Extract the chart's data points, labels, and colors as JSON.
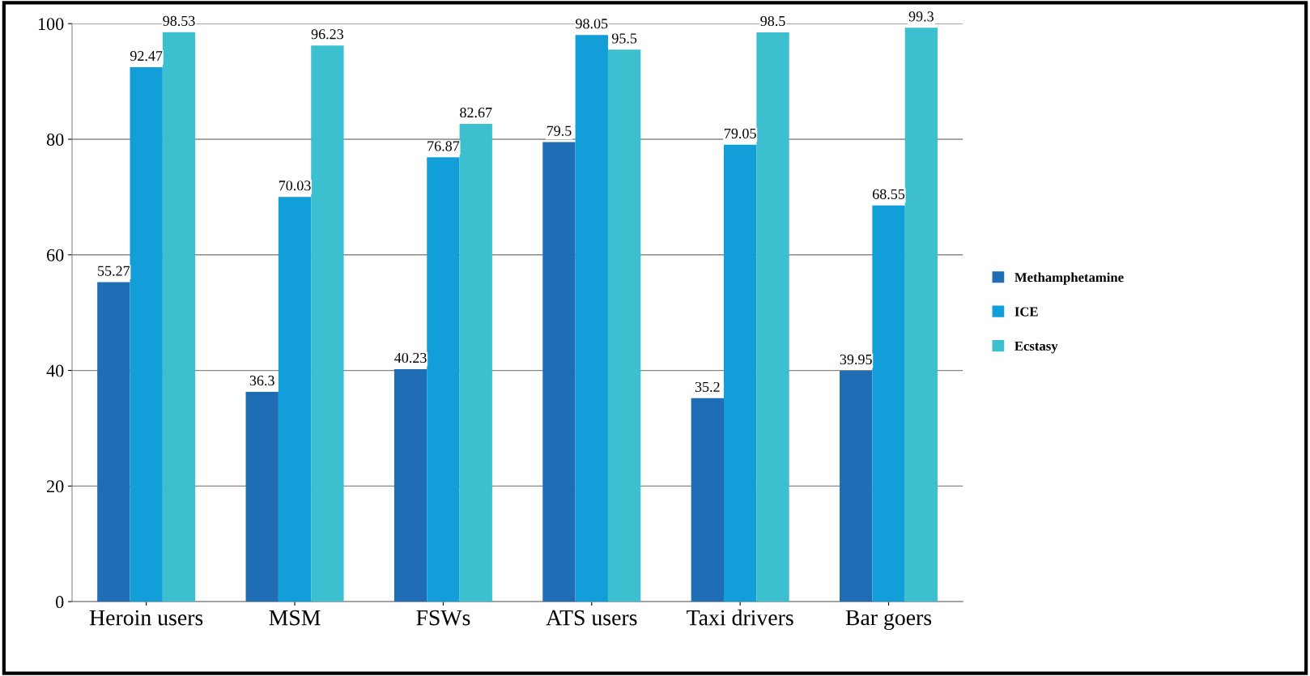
{
  "chart_data": {
    "type": "bar",
    "categories": [
      "Heroin users",
      "MSM",
      "FSWs",
      "ATS users",
      "Taxi drivers",
      "Bar goers"
    ],
    "series": [
      {
        "name": "Methamphetamine",
        "color": "#1f6db4",
        "values": [
          55.27,
          36.3,
          40.23,
          79.5,
          35.2,
          39.95
        ]
      },
      {
        "name": "ICE",
        "color": "#129fd9",
        "values": [
          92.47,
          70.03,
          76.87,
          98.05,
          79.05,
          68.55
        ]
      },
      {
        "name": "Ecstasy",
        "color": "#3cbfcf",
        "values": [
          98.53,
          96.23,
          82.67,
          95.5,
          98.5,
          99.3
        ]
      }
    ],
    "ylim": [
      0,
      100
    ],
    "yticks": [
      0,
      20,
      40,
      60,
      80,
      100
    ],
    "grid": "y",
    "legend": "right",
    "data_labels": true
  }
}
